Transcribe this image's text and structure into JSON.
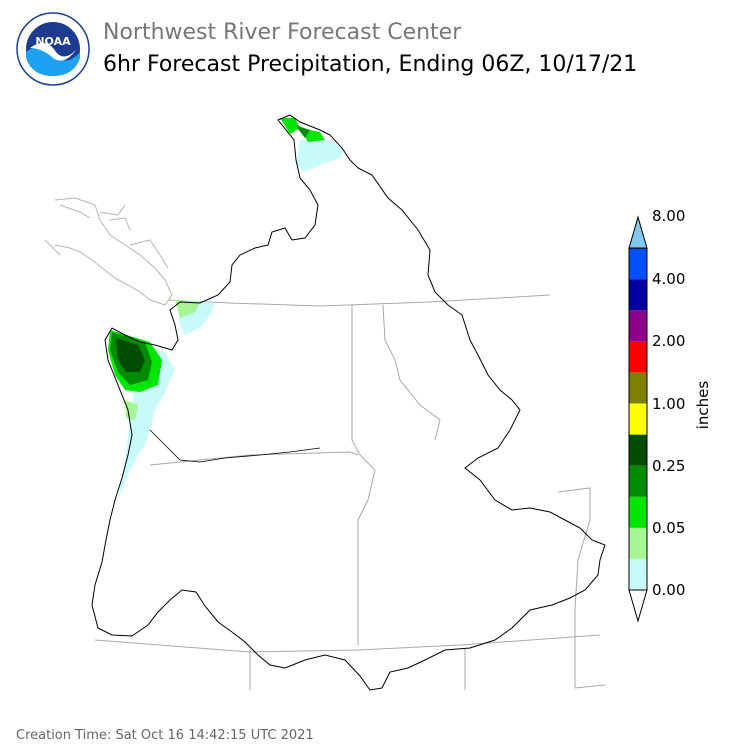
{
  "header": {
    "logo_text": "NOAA",
    "logo_ring_text": "NATIONAL OCEANIC AND ATMOSPHERIC ADMINISTRATION · U.S. DEPARTMENT OF COMMERCE",
    "title": "Northwest River Forecast Center",
    "subtitle": "6hr Forecast Precipitation, Ending 06Z, 10/17/21"
  },
  "legend": {
    "units": "inches",
    "tick_labels": [
      "8.00",
      "4.00",
      "2.00",
      "1.00",
      "0.25",
      "0.05",
      "0.00"
    ],
    "colors": [
      "#ffffff",
      "#c8fafa",
      "#a5f592",
      "#00e600",
      "#008c00",
      "#004d00",
      "#ffff00",
      "#808000",
      "#ff0000",
      "#8c008c",
      "#0000a0",
      "#0050ff",
      "#80c8f0"
    ]
  },
  "footer": {
    "creation_time": "Creation Time: Sat Oct 16 14:42:15 UTC 2021"
  }
}
